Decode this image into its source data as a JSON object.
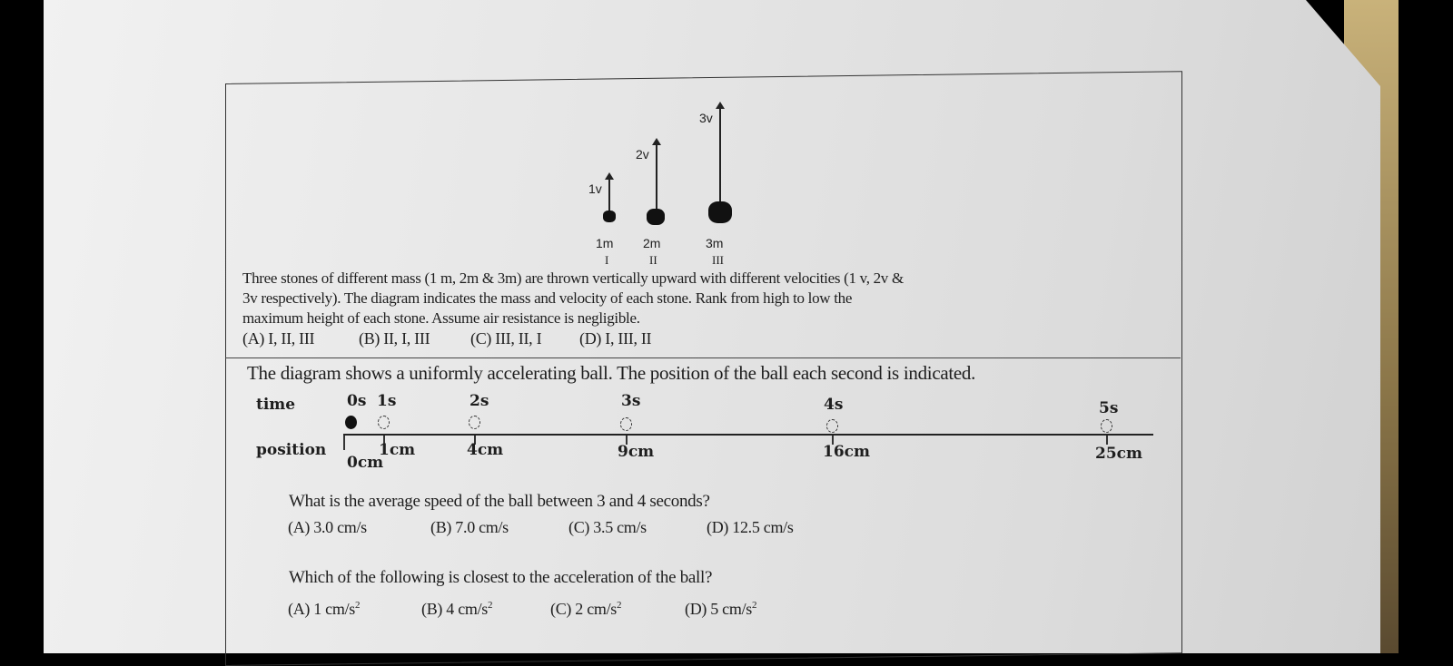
{
  "q1": {
    "diagram": {
      "velocity_labels": [
        "1v",
        "2v",
        "3v"
      ],
      "mass_labels": [
        "1m",
        "2m",
        "3m"
      ],
      "roman_labels": [
        "I",
        "II",
        "III"
      ]
    },
    "text_line1": "Three stones of different mass (1 m, 2m & 3m) are thrown vertically upward with different velocities (1 v, 2v &",
    "text_line2": "3v respectively). The diagram indicates the mass and velocity of each stone. Rank from high to low the",
    "text_line3": "maximum height of each stone. Assume air resistance is negligible.",
    "options": [
      "(A) I, II, III",
      "(B) II, I, III",
      "(C) III, II, I",
      "(D) I, III, II"
    ]
  },
  "q2": {
    "intro": "The diagram shows a uniformly accelerating ball. The position of the ball each second is indicated.",
    "time_label": "time",
    "position_label": "position",
    "times": [
      "0s",
      "1s",
      "2s",
      "3s",
      "4s",
      "5s"
    ],
    "positions": [
      "0cm",
      "1cm",
      "4cm",
      "9cm",
      "16cm",
      "25cm"
    ],
    "question_a": "What is the average speed of the ball between 3 and 4 seconds?",
    "options_a": [
      "(A) 3.0 cm/s",
      "(B) 7.0 cm/s",
      "(C) 3.5 cm/s",
      "(D) 12.5 cm/s"
    ],
    "question_b": "Which of the following is closest to the acceleration of the ball?",
    "options_b": [
      "(A) 1 cm/s",
      "(B) 4 cm/s",
      "(C)  2 cm/s",
      "(D)  5 cm/s"
    ],
    "exponent": "2"
  }
}
